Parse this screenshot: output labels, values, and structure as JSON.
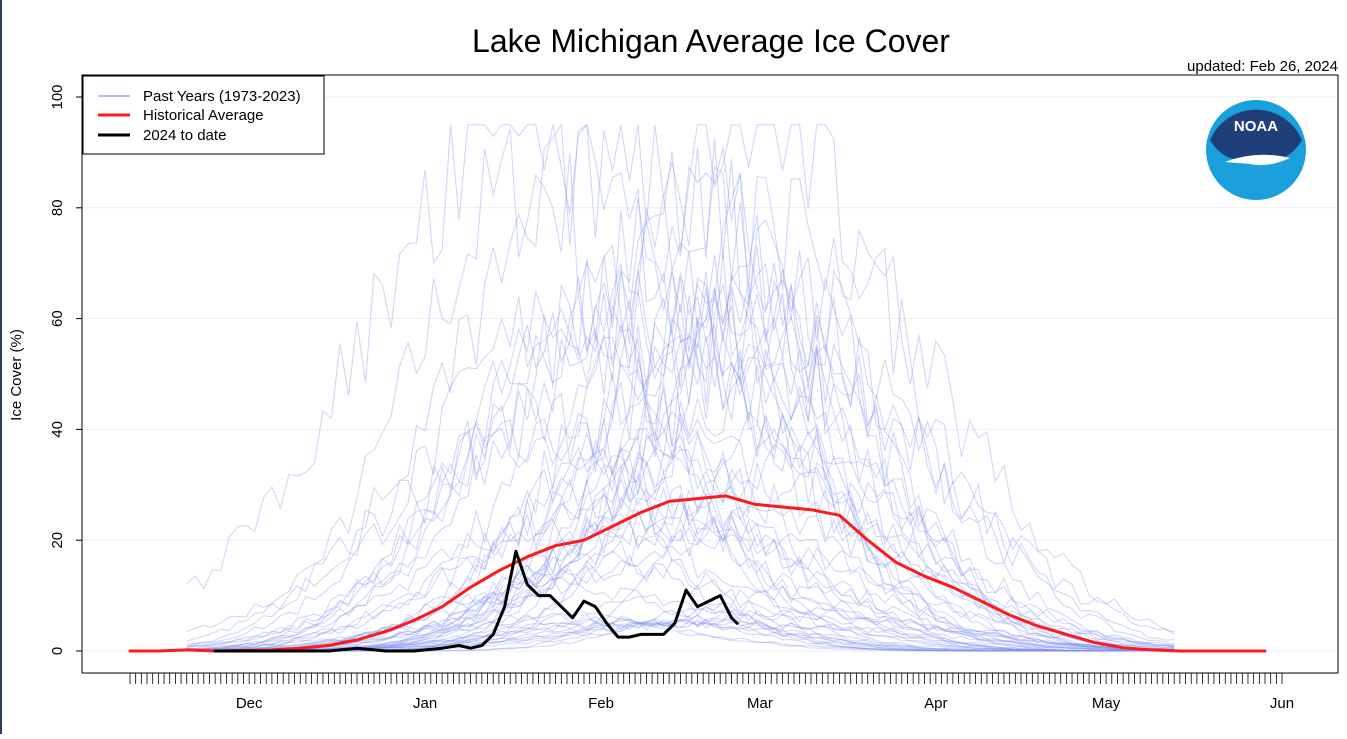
{
  "chart_data": {
    "type": "line",
    "title": "Lake Michigan Average Ice Cover",
    "updated": "updated: Feb 26, 2024",
    "ylabel": "Ice Cover (%)",
    "xlabel": "",
    "ylim": [
      0,
      100
    ],
    "yticks": [
      "0",
      "20",
      "40",
      "60",
      "80",
      "100"
    ],
    "yticks_values": [
      0,
      20,
      40,
      60,
      80,
      100
    ],
    "xlim_days": [
      0,
      200
    ],
    "month_ticks": [
      {
        "label": "Dec",
        "day": 21
      },
      {
        "label": "Jan",
        "day": 52
      },
      {
        "label": "Feb",
        "day": 83
      },
      {
        "label": "Mar",
        "day": 111
      },
      {
        "label": "Apr",
        "day": 142
      },
      {
        "label": "May",
        "day": 172
      },
      {
        "label": "Jun",
        "day": 203
      }
    ],
    "legend": {
      "placement": "top-left",
      "entries": [
        {
          "label": "Past Years (1973-2023)",
          "color": "#b7c0f5"
        },
        {
          "label": "Historical Average",
          "color": "#ff1a1a"
        },
        {
          "label": "2024 to date",
          "color": "#000000"
        }
      ]
    },
    "logo_text": "NOAA",
    "series": [
      {
        "name": "Historical Average",
        "color": "#ff1a1a",
        "x": [
          0,
          5,
          10,
          15,
          20,
          25,
          30,
          35,
          40,
          45,
          50,
          55,
          60,
          65,
          70,
          75,
          80,
          85,
          90,
          95,
          100,
          105,
          110,
          115,
          120,
          125,
          130,
          135,
          140,
          145,
          150,
          155,
          160,
          165,
          170,
          175,
          180,
          185,
          190,
          200
        ],
        "y": [
          0,
          0,
          0.2,
          0,
          0.1,
          0.2,
          0.5,
          1,
          2,
          3.5,
          5.5,
          8,
          11.5,
          14.5,
          17,
          19,
          20,
          22.5,
          25,
          27,
          27.5,
          28,
          26.5,
          26,
          25.5,
          24.5,
          20,
          16,
          13.5,
          11.5,
          9,
          6.5,
          4.5,
          3,
          1.5,
          0.6,
          0.2,
          0,
          0,
          0
        ]
      },
      {
        "name": "2024 to date",
        "color": "#000000",
        "x": [
          15,
          20,
          25,
          30,
          35,
          40,
          45,
          50,
          55,
          58,
          60,
          62,
          64,
          66,
          68,
          70,
          72,
          74,
          76,
          78,
          80,
          82,
          84,
          86,
          88,
          90,
          92,
          94,
          96,
          98,
          100,
          102,
          104,
          106,
          107
        ],
        "y": [
          0,
          0,
          0,
          0,
          0,
          0.5,
          0,
          0,
          0.5,
          1,
          0.5,
          1,
          3,
          8,
          18,
          12,
          10,
          10,
          8,
          6,
          9,
          8,
          5,
          2.5,
          2.5,
          3,
          3,
          3,
          5,
          11,
          8,
          9,
          10,
          6,
          5
        ]
      }
    ],
    "past_years_count": 51
  }
}
